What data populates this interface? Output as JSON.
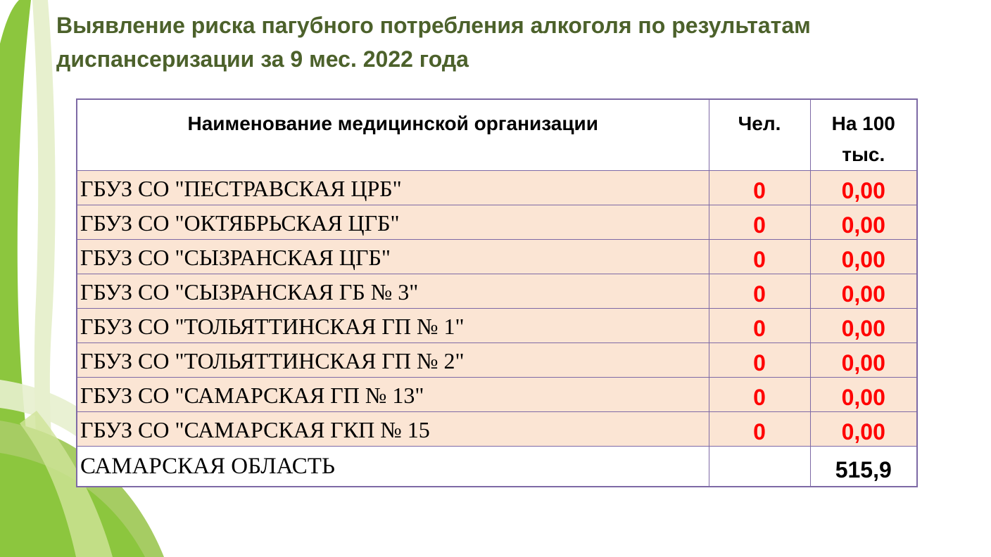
{
  "slide": {
    "title_line1": "Выявление риска пагубного потребления алкоголя по результатам",
    "title_line2": "диспансеризации за 9 мес. 2022 года"
  },
  "table": {
    "headers": {
      "organization": "Наименование медицинской организации",
      "people": "Чел.",
      "per_100k_line1": "На 100",
      "per_100k_line2": "тыс."
    },
    "rows": [
      {
        "organization": "ГБУЗ СО \"ПЕСТРАВСКАЯ ЦРБ\"",
        "people": "0",
        "per_100k": "0,00"
      },
      {
        "organization": "ГБУЗ СО \"ОКТЯБРЬСКАЯ ЦГБ\"",
        "people": "0",
        "per_100k": "0,00"
      },
      {
        "organization": "ГБУЗ СО \"СЫЗРАНСКАЯ ЦГБ\"",
        "people": "0",
        "per_100k": "0,00"
      },
      {
        "organization": "ГБУЗ СО \"СЫЗРАНСКАЯ ГБ № 3\"",
        "people": "0",
        "per_100k": "0,00"
      },
      {
        "organization": "ГБУЗ СО \"ТОЛЬЯТТИНСКАЯ ГП № 1\"",
        "people": "0",
        "per_100k": "0,00"
      },
      {
        "organization": "ГБУЗ СО \"ТОЛЬЯТТИНСКАЯ ГП № 2\"",
        "people": "0",
        "per_100k": "0,00"
      },
      {
        "organization": "ГБУЗ СО \"САМАРСКАЯ ГП № 13\"",
        "people": "0",
        "per_100k": "0,00"
      },
      {
        "organization": "ГБУЗ СО \"САМАРСКАЯ ГКП № 15",
        "people": "0",
        "per_100k": "0,00"
      }
    ],
    "total_row": {
      "organization": "САМАРСКАЯ ОБЛАСТЬ",
      "people": "",
      "per_100k": "515,9"
    }
  },
  "colors": {
    "title_green": "#4C612B",
    "accent_green": "#8CC63E",
    "medium_green": "#A6CC63",
    "pale_green": "#E7F0CE",
    "highlight_green": "#CFE398",
    "row_bg": "#FBE5D4",
    "border_purple": "#7D69A5",
    "value_red": "#FF0000",
    "text_black": "#000000"
  }
}
